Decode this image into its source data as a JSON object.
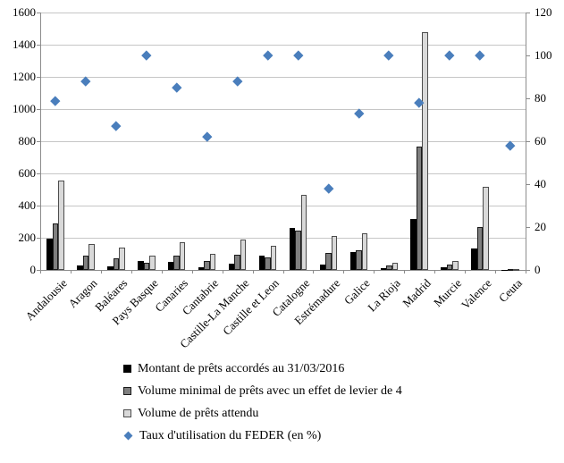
{
  "chart_data": {
    "type": "combo-bar-scatter",
    "categories": [
      "Andalousie",
      "Aragon",
      "Baléares",
      "Pays Basque",
      "Canaries",
      "Cantabrie",
      "Castille-La Manche",
      "Castille et Leon",
      "Catalogne",
      "Estrémadure",
      "Galice",
      "La Rioja",
      "Madrid",
      "Murcie",
      "Valence",
      "Ceuta"
    ],
    "bar_series": [
      {
        "name": "Montant de prêts accordés au 31/03/2016",
        "color": "#000000",
        "border": "#000000",
        "axis": "left",
        "values": [
          195,
          30,
          25,
          57,
          50,
          15,
          40,
          90,
          260,
          33,
          110,
          10,
          318,
          18,
          134,
          2
        ]
      },
      {
        "name": "Volume minimal de prêts avec un effet de levier de 4",
        "color": "#7f7f7f",
        "border": "#1a1a1a",
        "axis": "left",
        "values": [
          290,
          90,
          72,
          46,
          90,
          55,
          97,
          80,
          245,
          108,
          123,
          27,
          765,
          32,
          266,
          3
        ]
      },
      {
        "name": "Volume de prêts attendu",
        "color": "#d9d9d9",
        "border": "#4d4d4d",
        "axis": "left",
        "values": [
          555,
          163,
          140,
          91,
          170,
          101,
          187,
          152,
          466,
          210,
          228,
          47,
          1478,
          54,
          516,
          8
        ]
      }
    ],
    "scatter_series": [
      {
        "name": "Taux d'utilisation du FEDER (en %)",
        "color": "#4a7ebc",
        "marker": "diamond",
        "axis": "right",
        "values": [
          79,
          88,
          67,
          100,
          85,
          62,
          88,
          100,
          100,
          38,
          73,
          100,
          78,
          100,
          100,
          58
        ]
      }
    ],
    "left_axis": {
      "min": 0,
      "max": 1600,
      "step": 200,
      "tick_labels": [
        "0",
        "200",
        "400",
        "600",
        "800",
        "1000",
        "1200",
        "1400",
        "1600"
      ]
    },
    "right_axis": {
      "min": 0,
      "max": 120,
      "step": 20,
      "tick_labels": [
        "0",
        "20",
        "40",
        "60",
        "80",
        "100",
        "120"
      ]
    },
    "grid": true,
    "legend_position": "bottom-left"
  },
  "style_colors": {
    "gridline": "#c6c6c6",
    "axis_line": "#8c8c8c",
    "text": "#000000",
    "background": "#ffffff",
    "accent_blue": "#4a7ebc"
  }
}
